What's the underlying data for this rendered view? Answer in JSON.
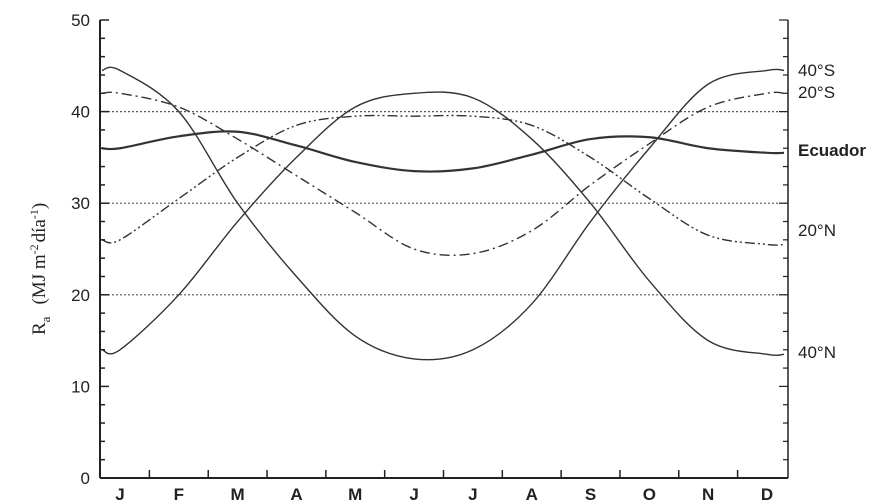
{
  "chart_data": {
    "type": "line",
    "xlabel": "",
    "ylabel_main": "R",
    "ylabel_sub": "a",
    "ylabel_units": "(MJ m",
    "ylabel_exp1": "-2",
    "ylabel_units2": "día",
    "ylabel_exp2": "-1",
    "ylabel_close": ")",
    "ylim": [
      0,
      50
    ],
    "y_ticks": [
      "0",
      "10",
      "20",
      "30",
      "40",
      "50"
    ],
    "gridlines_y": [
      20,
      30,
      40
    ],
    "categories": [
      "J",
      "F",
      "M",
      "A",
      "M",
      "J",
      "J",
      "A",
      "S",
      "O",
      "N",
      "D"
    ],
    "x": [
      1,
      2,
      3,
      4,
      5,
      6,
      7,
      8,
      9,
      10,
      11,
      12
    ],
    "series": [
      {
        "name": "40°S",
        "style": "solid",
        "values": [
          44.5,
          40,
          30,
          22,
          15.5,
          13,
          14,
          19,
          28,
          36,
          43,
          44.5
        ]
      },
      {
        "name": "20°S",
        "style": "dashdot",
        "values": [
          42,
          40.5,
          37,
          33,
          29,
          25,
          24.5,
          27,
          32,
          36.5,
          40.5,
          42
        ]
      },
      {
        "name": "Ecuador",
        "style": "solid-bold",
        "values": [
          36,
          37.3,
          37.8,
          36.3,
          34.5,
          33.5,
          33.8,
          35.3,
          37,
          37.2,
          36,
          35.5
        ]
      },
      {
        "name": "20°N",
        "style": "dashdotdot",
        "values": [
          26,
          30.5,
          35,
          38.5,
          39.5,
          39.5,
          39.5,
          38.5,
          35,
          30.5,
          26.5,
          25.5
        ]
      },
      {
        "name": "40°N",
        "style": "solid",
        "values": [
          14,
          20,
          28,
          35,
          40.5,
          42,
          41.5,
          37,
          30,
          21.5,
          15,
          13.5
        ]
      }
    ],
    "colors": {
      "line": "#333333",
      "grid": "#555555",
      "axis": "#222222"
    }
  }
}
